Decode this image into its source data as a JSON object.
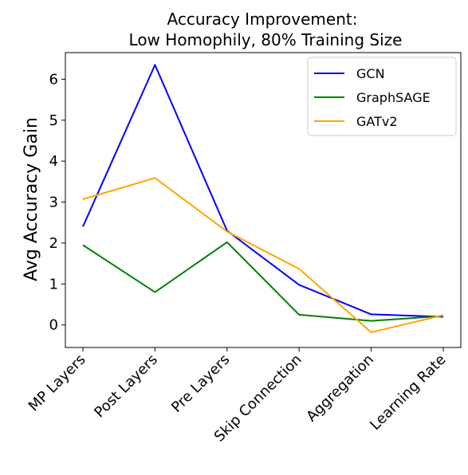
{
  "chart_data": {
    "type": "line",
    "title_line1": "Accuracy Improvement:",
    "title_line2": "Low Homophily, 80% Training Size",
    "xlabel": "",
    "ylabel": "Avg Accuracy Gain",
    "categories": [
      "MP Layers",
      "Post Layers",
      "Pre Layers",
      "Skip Connection",
      "Aggregation",
      "Learning Rate"
    ],
    "yticks": [
      "0",
      "1",
      "2",
      "3",
      "4",
      "5",
      "6"
    ],
    "ylim": [
      -0.55,
      6.65
    ],
    "grid": false,
    "legend_position": "upper right",
    "series": [
      {
        "name": "GCN",
        "color": "#0000ff",
        "values": [
          2.4,
          6.35,
          2.3,
          0.98,
          0.26,
          0.2
        ]
      },
      {
        "name": "GraphSAGE",
        "color": "#008000",
        "values": [
          1.95,
          0.8,
          2.02,
          0.25,
          0.1,
          0.22
        ]
      },
      {
        "name": "GATv2",
        "color": "#ffa500",
        "values": [
          3.07,
          3.59,
          2.28,
          1.37,
          -0.18,
          0.24
        ]
      }
    ]
  }
}
